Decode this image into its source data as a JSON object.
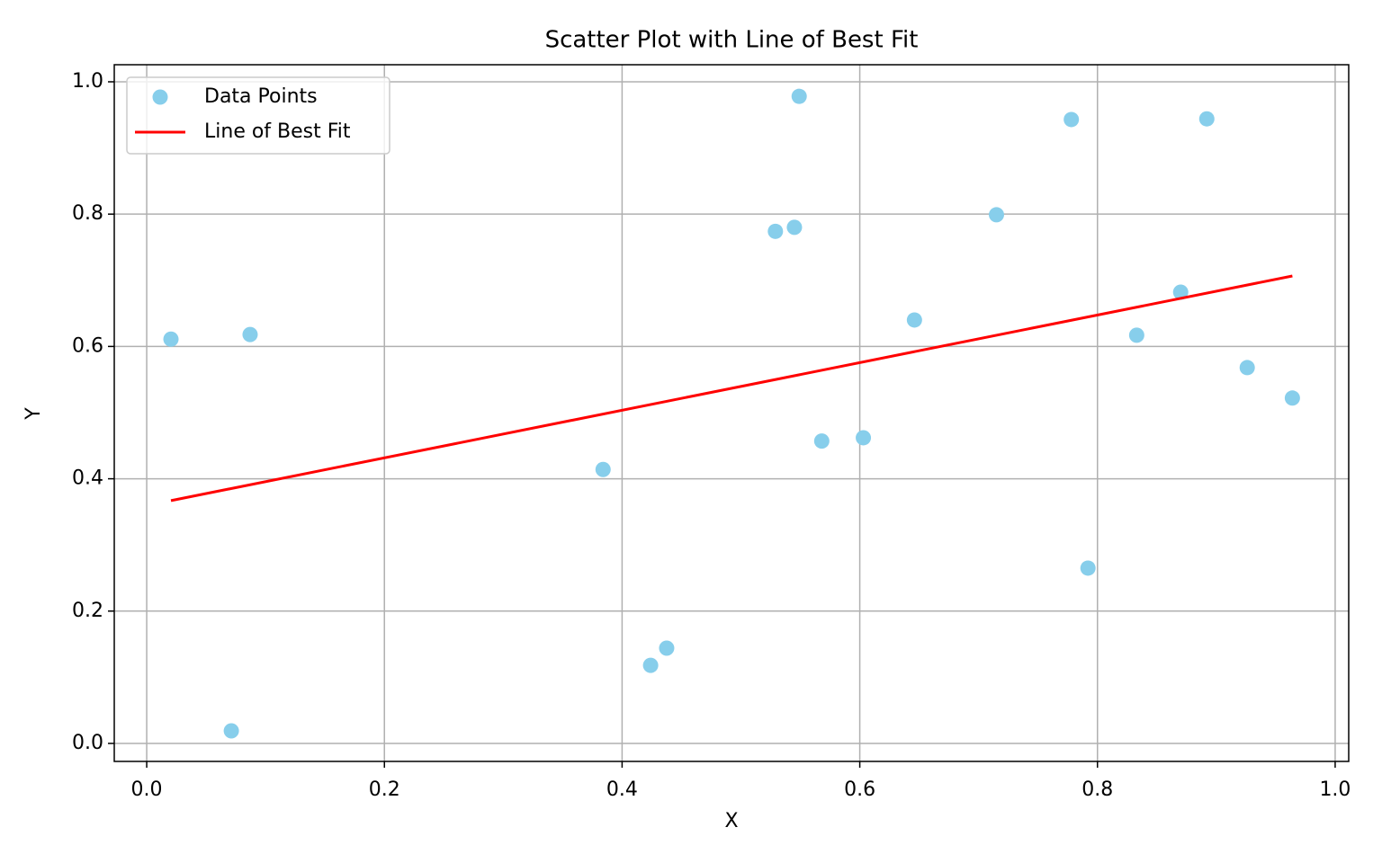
{
  "chart_data": {
    "type": "scatter",
    "title": "Scatter Plot with Line of Best Fit",
    "xlabel": "X",
    "ylabel": "Y",
    "xlim": [
      -0.0273,
      1.0114
    ],
    "ylim": [
      -0.0272,
      1.0258
    ],
    "xticks": [
      {
        "value": 0,
        "label": "0.0"
      },
      0.2,
      0.4,
      0.6,
      0.8,
      {
        "value": 1,
        "label": "1.0"
      }
    ],
    "yticks": [
      {
        "value": 0,
        "label": "0.0"
      },
      0.2,
      0.4,
      0.6,
      0.8,
      {
        "value": 1,
        "label": "1.0"
      }
    ],
    "grid": true,
    "legend": "upper left",
    "series": [
      {
        "name": "Data Points",
        "type": "scatter",
        "color": "#87ceeb",
        "x": [
          0.0204,
          0.0712,
          0.087,
          0.384,
          0.424,
          0.4375,
          0.529,
          0.545,
          0.549,
          0.568,
          0.603,
          0.646,
          0.715,
          0.778,
          0.792,
          0.833,
          0.87,
          0.892,
          0.926,
          0.964
        ],
        "values": [
          0.611,
          0.019,
          0.618,
          0.414,
          0.118,
          0.144,
          0.774,
          0.78,
          0.978,
          0.457,
          0.462,
          0.64,
          0.799,
          0.943,
          0.265,
          0.617,
          0.682,
          0.944,
          0.568,
          0.522
        ]
      },
      {
        "name": "Line of Best Fit",
        "type": "line",
        "color": "#ff0000",
        "x": [
          0.0204,
          0.964
        ],
        "values": [
          0.367,
          0.7065
        ]
      }
    ]
  }
}
